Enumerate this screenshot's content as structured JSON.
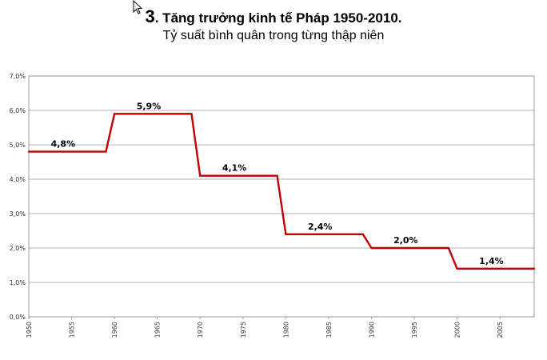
{
  "title": {
    "number": "3",
    "text": ". Tăng trưởng kinh tế Pháp 1950-2010.",
    "subtitle": "Tỷ suất bình quân trong từng thập niên"
  },
  "chart_data": {
    "type": "line",
    "title": "3. Tăng trưởng kinh tế Pháp 1950-2010.",
    "subtitle": "Tỷ suất bình quân trong từng thập niên",
    "xlabel": "",
    "ylabel": "",
    "xlim": [
      1950,
      2009
    ],
    "ylim": [
      0,
      7
    ],
    "y_ticks": [
      0,
      1,
      2,
      3,
      4,
      5,
      6,
      7
    ],
    "y_tick_labels": [
      "0,0%",
      "1,0%",
      "2,0%",
      "3,0%",
      "4,0%",
      "5,0%",
      "6,0%",
      "7,0%"
    ],
    "x_ticks": [
      1950,
      1955,
      1960,
      1965,
      1970,
      1975,
      1980,
      1985,
      1990,
      1995,
      2000,
      2005
    ],
    "grid": "horizontal",
    "series_color": "#c00000",
    "series": [
      {
        "x": [
          1950,
          1959,
          1960,
          1969,
          1970,
          1979,
          1980,
          1989,
          1990,
          1999,
          2000,
          2009
        ],
        "values": [
          4.8,
          4.8,
          5.9,
          5.9,
          4.1,
          4.1,
          2.4,
          2.4,
          2.0,
          2.0,
          1.4,
          1.4
        ]
      }
    ],
    "data_labels": [
      {
        "x": 1954,
        "y": 4.8,
        "text": "4,8%"
      },
      {
        "x": 1964,
        "y": 5.9,
        "text": "5,9%"
      },
      {
        "x": 1974,
        "y": 4.1,
        "text": "4,1%"
      },
      {
        "x": 1984,
        "y": 2.4,
        "text": "2,4%"
      },
      {
        "x": 1994,
        "y": 2.0,
        "text": "2,0%"
      },
      {
        "x": 2004,
        "y": 1.4,
        "text": "1,4%"
      }
    ]
  }
}
